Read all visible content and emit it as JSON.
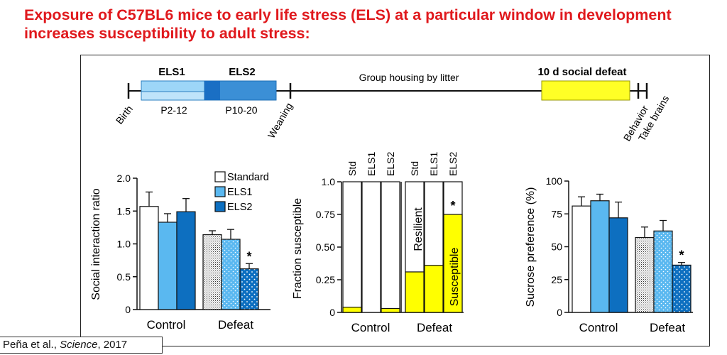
{
  "title": "Exposure of C57BL6 mice to early life stress (ELS) at a particular window in development increases susceptibility to adult stress:",
  "citation": {
    "author": "Peña et al., ",
    "journal": "Science",
    "year": ", 2017"
  },
  "colors": {
    "title_red": "#e0191d",
    "els1": "#5ab8f0",
    "els2": "#0d6fc0",
    "standard": "#ffffff",
    "yellow": "#ffff00"
  },
  "timeline": {
    "els1_label": "ELS1",
    "els2_label": "ELS2",
    "els1_range": "P2-12",
    "els2_range": "P10-20",
    "group_housing": "Group housing by litter",
    "defeat_label": "10 d social defeat",
    "birth": "Birth",
    "weaning": "Weaning",
    "behavior": "Behavior",
    "take_brains": "Take brains"
  },
  "chart_data": [
    {
      "type": "bar",
      "ylabel": "Social interaction ratio",
      "ylim": [
        0,
        2.0
      ],
      "yticks": [
        "0",
        "0.5",
        "1.0",
        "1.5",
        "2.0"
      ],
      "groups": [
        "Control",
        "Defeat"
      ],
      "series": [
        {
          "name": "Standard",
          "values": [
            1.57,
            1.14
          ],
          "errors": [
            0.22,
            0.06
          ]
        },
        {
          "name": "ELS1",
          "values": [
            1.33,
            1.07
          ],
          "errors": [
            0.13,
            0.15
          ]
        },
        {
          "name": "ELS2",
          "values": [
            1.49,
            0.62
          ],
          "errors": [
            0.2,
            0.08
          ]
        }
      ],
      "annotations": [
        {
          "group": "Defeat",
          "series": "ELS2",
          "text": "*"
        }
      ],
      "legend": [
        "Standard",
        "ELS1",
        "ELS2"
      ],
      "legend_position": "top-right"
    },
    {
      "type": "bar",
      "stacked": true,
      "ylabel": "Fraction susceptible",
      "ylim": [
        0,
        1.0
      ],
      "yticks": [
        "0",
        "0.25",
        "0.50",
        "0.75",
        "1.0"
      ],
      "categories": [
        "Std",
        "ELS1",
        "ELS2",
        "Std",
        "ELS1",
        "ELS2"
      ],
      "groups": [
        "Control",
        "Defeat"
      ],
      "susceptible": [
        0.04,
        0.0,
        0.03,
        0.31,
        0.36,
        0.75
      ],
      "resilient_label": "Resilient",
      "susceptible_label": "Susceptible",
      "annotations": [
        {
          "index": 5,
          "text": "*"
        }
      ]
    },
    {
      "type": "bar",
      "ylabel": "Sucrose preference (%)",
      "ylim": [
        0,
        100
      ],
      "yticks": [
        "0",
        "25",
        "50",
        "75",
        "100"
      ],
      "groups": [
        "Control",
        "Defeat"
      ],
      "series": [
        {
          "name": "Standard",
          "values": [
            81,
            57
          ],
          "errors": [
            7,
            8
          ]
        },
        {
          "name": "ELS1",
          "values": [
            85,
            62
          ],
          "errors": [
            5,
            8
          ]
        },
        {
          "name": "ELS2",
          "values": [
            72,
            36
          ],
          "errors": [
            12,
            2
          ]
        }
      ],
      "annotations": [
        {
          "group": "Defeat",
          "series": "ELS2",
          "text": "*"
        }
      ]
    }
  ]
}
